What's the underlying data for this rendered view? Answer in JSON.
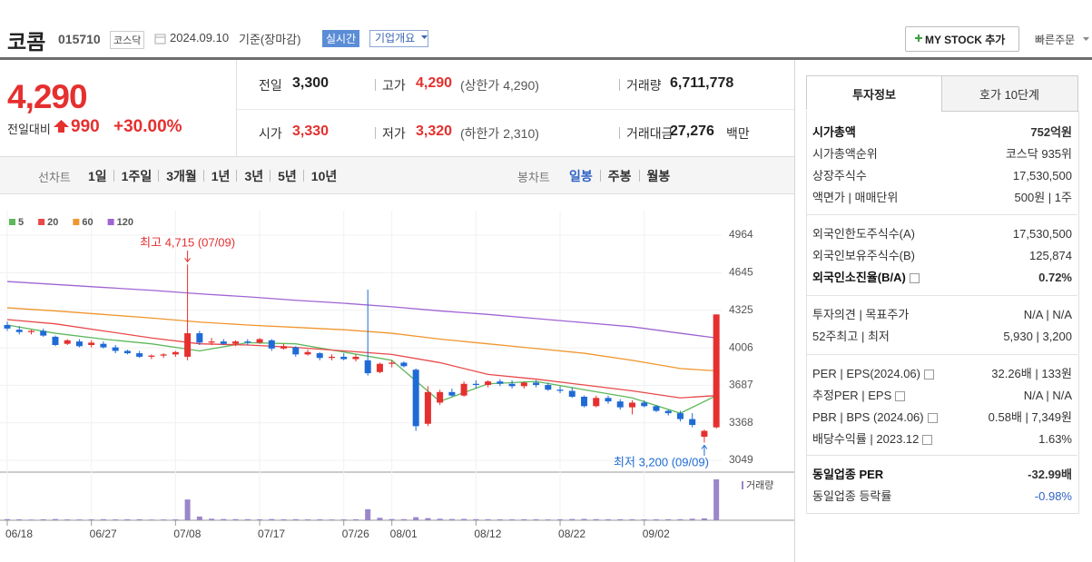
{
  "header": {
    "name": "코콤",
    "code": "015710",
    "market": "코스닥",
    "date": "2024.09.10",
    "basis": "기준(장마감)",
    "realtime": "실시간",
    "overview": "기업개요",
    "my_stock": "MY STOCK 추가",
    "quick_order": "빠른주문"
  },
  "price": {
    "current": "4,290",
    "change_label": "전일대비",
    "change": "990",
    "change_pct": "+30.00%",
    "rows": [
      [
        {
          "label": "전일",
          "value": "3,300"
        },
        {
          "label": "고가",
          "value": "4,290",
          "note": "(상한가 4,290)"
        },
        {
          "label": "거래량",
          "value": "6,711,778"
        }
      ],
      [
        {
          "label": "시가",
          "value": "3,330"
        },
        {
          "label": "저가",
          "value": "3,320",
          "note": "(하한가 2,310)"
        },
        {
          "label": "거래대금",
          "value": "27,276",
          "unit": "백만"
        }
      ]
    ]
  },
  "toolbar": {
    "line_label": "선차트",
    "line_periods": [
      "1일",
      "1주일",
      "3개월",
      "1년",
      "3년",
      "5년",
      "10년"
    ],
    "candle_label": "봉차트",
    "candle_periods": [
      "일봉",
      "주봉",
      "월봉"
    ]
  },
  "chart_data": {
    "type": "candlestick",
    "categories": [
      "06/18",
      null,
      null,
      null,
      null,
      null,
      null,
      "06/27",
      null,
      null,
      null,
      null,
      null,
      null,
      "07/08",
      null,
      null,
      null,
      null,
      null,
      null,
      "07/17",
      null,
      null,
      null,
      null,
      null,
      null,
      "07/26",
      null,
      null,
      null,
      "08/01",
      null,
      null,
      null,
      null,
      null,
      null,
      "08/12",
      null,
      null,
      null,
      null,
      null,
      null,
      "08/22",
      null,
      null,
      null,
      null,
      null,
      null,
      "09/02",
      null,
      null,
      null,
      null,
      null,
      null
    ],
    "open": [
      4200,
      4160,
      4140,
      4150,
      4100,
      4040,
      4060,
      4030,
      4040,
      4010,
      3980,
      3960,
      3930,
      3940,
      3950,
      3930,
      4130,
      4050,
      4060,
      4040,
      4060,
      4050,
      4070,
      4000,
      4010,
      3950,
      3960,
      3920,
      3930,
      3910,
      3900,
      3800,
      3870,
      3880,
      3820,
      3360,
      3540,
      3630,
      3600,
      3700,
      3690,
      3720,
      3700,
      3680,
      3710,
      3690,
      3650,
      3640,
      3590,
      3510,
      3580,
      3550,
      3500,
      3540,
      3510,
      3470,
      3450,
      3400,
      3250,
      3330
    ],
    "high": [
      4230,
      4190,
      4160,
      4170,
      4110,
      4080,
      4080,
      4070,
      4060,
      4030,
      3990,
      3980,
      3950,
      3960,
      3980,
      4715,
      4150,
      4090,
      4080,
      4070,
      4080,
      4090,
      4080,
      4040,
      4020,
      3990,
      3970,
      3950,
      3960,
      3950,
      4501,
      3880,
      3900,
      3890,
      3830,
      3680,
      3650,
      3660,
      3720,
      3730,
      3730,
      3740,
      3730,
      3720,
      3730,
      3710,
      3680,
      3670,
      3600,
      3600,
      3600,
      3570,
      3560,
      3560,
      3520,
      3480,
      3470,
      3450,
      3310,
      4290
    ],
    "low": [
      4150,
      4120,
      4120,
      4100,
      4020,
      4030,
      4010,
      4010,
      4000,
      3960,
      3950,
      3920,
      3910,
      3920,
      3930,
      3900,
      4030,
      4030,
      4030,
      4020,
      4030,
      4040,
      3980,
      3990,
      3930,
      3940,
      3900,
      3900,
      3900,
      3890,
      3770,
      3790,
      3840,
      3840,
      3300,
      3340,
      3520,
      3590,
      3590,
      3660,
      3670,
      3680,
      3660,
      3660,
      3670,
      3640,
      3620,
      3580,
      3500,
      3500,
      3530,
      3480,
      3440,
      3500,
      3460,
      3430,
      3380,
      3330,
      3200,
      3320
    ],
    "close": [
      4170,
      4140,
      4150,
      4110,
      4030,
      4070,
      4020,
      4050,
      4010,
      3980,
      3960,
      3930,
      3940,
      3950,
      3970,
      4130,
      4050,
      4060,
      4040,
      4060,
      4050,
      4080,
      4000,
      4020,
      3950,
      3970,
      3920,
      3930,
      3910,
      3930,
      3790,
      3870,
      3880,
      3850,
      3340,
      3630,
      3630,
      3600,
      3700,
      3690,
      3720,
      3700,
      3680,
      3710,
      3690,
      3650,
      3640,
      3590,
      3510,
      3580,
      3550,
      3500,
      3540,
      3510,
      3470,
      3450,
      3400,
      3350,
      3300,
      4290
    ],
    "up_color": "#e5302f",
    "down_color": "#1f6bd6",
    "volume": [
      180000,
      150000,
      120000,
      160000,
      200000,
      140000,
      130000,
      150000,
      170000,
      140000,
      150000,
      160000,
      120000,
      130000,
      140000,
      3400000,
      600000,
      250000,
      200000,
      180000,
      170000,
      160000,
      200000,
      150000,
      170000,
      140000,
      150000,
      130000,
      140000,
      160000,
      1800000,
      400000,
      200000,
      180000,
      500000,
      350000,
      250000,
      200000,
      220000,
      180000,
      160000,
      150000,
      140000,
      170000,
      150000,
      130000,
      160000,
      200000,
      220000,
      180000,
      150000,
      170000,
      160000,
      140000,
      150000,
      160000,
      170000,
      250000,
      300000,
      6711778
    ],
    "volume_label": "거래량",
    "volume_color": "#9b86c9",
    "volume_ylim": [
      0,
      7150000
    ],
    "series": [
      {
        "name": "5",
        "color": "#5db85a",
        "x": [
          0,
          4,
          8,
          12,
          16,
          20,
          24,
          28,
          32,
          36,
          40,
          44,
          48,
          52,
          56,
          59
        ],
        "values": [
          4200,
          4130,
          4080,
          4040,
          3980,
          4050,
          4040,
          3970,
          3900,
          3550,
          3700,
          3720,
          3650,
          3580,
          3450,
          3600
        ]
      },
      {
        "name": "20",
        "color": "#e8494a",
        "x": [
          0,
          4,
          8,
          12,
          16,
          20,
          24,
          28,
          32,
          36,
          40,
          44,
          48,
          52,
          56,
          59
        ],
        "values": [
          4246,
          4210,
          4150,
          4090,
          4040,
          4030,
          4010,
          3980,
          3950,
          3880,
          3780,
          3740,
          3690,
          3640,
          3580,
          3600
        ]
      },
      {
        "name": "60",
        "color": "#f0962e",
        "x": [
          0,
          4,
          8,
          12,
          16,
          20,
          24,
          28,
          32,
          36,
          40,
          44,
          48,
          52,
          56,
          59
        ],
        "values": [
          4346,
          4320,
          4290,
          4260,
          4225,
          4200,
          4180,
          4160,
          4130,
          4080,
          4040,
          4000,
          3960,
          3900,
          3830,
          3810
        ]
      },
      {
        "name": "120",
        "color": "#a064d2",
        "x": [
          0,
          4,
          8,
          12,
          16,
          20,
          24,
          28,
          32,
          36,
          40,
          44,
          48,
          52,
          56,
          59
        ],
        "values": [
          4570,
          4545,
          4520,
          4495,
          4465,
          4440,
          4410,
          4385,
          4355,
          4320,
          4290,
          4255,
          4220,
          4185,
          4130,
          4090
        ]
      }
    ],
    "annotations": [
      {
        "text": "최고 4,715 (07/09)",
        "color": "#e5302f"
      },
      {
        "text": "최저 3,200 (09/09)",
        "color": "#1f6bd6"
      }
    ],
    "ylim": [
      2949,
      5111
    ],
    "yticks": [
      3049,
      3368,
      3687,
      4006,
      4325,
      4645,
      4964
    ],
    "grid": true
  },
  "info": {
    "tabs": [
      "투자정보",
      "호가 10단계"
    ],
    "groups": [
      [
        {
          "label": "시가총액",
          "value": "752억원"
        },
        {
          "label": "시가총액순위",
          "value": "코스닥 935위"
        },
        {
          "label": "상장주식수",
          "value": "17,530,500"
        },
        {
          "label": "액면가 | 매매단위",
          "value": "500원 | 1주"
        }
      ],
      [
        {
          "label": "외국인한도주식수(A)",
          "value": "17,530,500"
        },
        {
          "label": "외국인보유주식수(B)",
          "value": "125,874"
        },
        {
          "label": "외국인소진율(B/A)",
          "value": "0.72%"
        }
      ],
      [
        {
          "label": "투자의견 | 목표주가",
          "value": "N/A | N/A"
        },
        {
          "label": "52주최고 | 최저",
          "value": "5,930 | 3,200"
        }
      ],
      [
        {
          "label": "PER | EPS(2024.06)",
          "value": "32.26배 | 133원"
        },
        {
          "label": "추정PER | EPS",
          "value": "N/A | N/A"
        },
        {
          "label": "PBR | BPS (2024.06)",
          "value": "0.58배 | 7,349원"
        },
        {
          "label": "배당수익률 | 2023.12",
          "value": "1.63%"
        }
      ],
      [
        {
          "label": "동일업종 PER",
          "value": "-32.99배"
        },
        {
          "label": "동일업종 등락률",
          "value": "-0.98%"
        }
      ]
    ]
  }
}
